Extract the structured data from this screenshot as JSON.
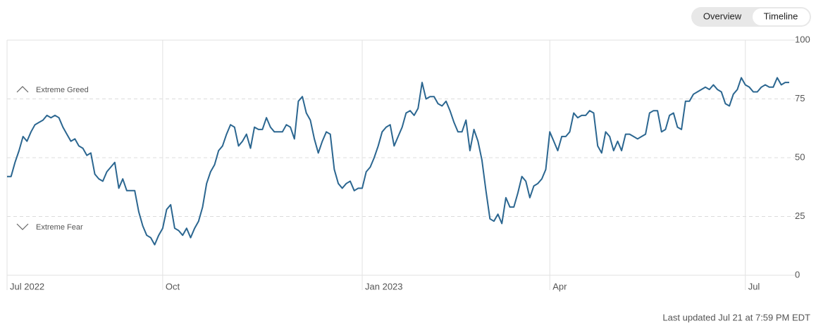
{
  "controls": {
    "buttons": [
      "Overview",
      "Timeline"
    ],
    "active": 1
  },
  "chart_data": {
    "type": "line",
    "annotations": [
      "Extreme Greed",
      "Extreme Fear"
    ],
    "footer": "Last updated Jul 21 at 7:59 PM EDT",
    "color": "#2b6690",
    "values": [
      42,
      42,
      48,
      53,
      59,
      57,
      61,
      64,
      65,
      66,
      68,
      67,
      68,
      67,
      63,
      60,
      57,
      58,
      55,
      54,
      51,
      52,
      43,
      41,
      40,
      44,
      46,
      48,
      37,
      41,
      36,
      36,
      36,
      27,
      21,
      17,
      16,
      13,
      17,
      20,
      28,
      30,
      20,
      19,
      17,
      20,
      16,
      20,
      23,
      29,
      39,
      44,
      47,
      53,
      55,
      60,
      64,
      63,
      55,
      57,
      60,
      54,
      63,
      62,
      62,
      67,
      63,
      61,
      61,
      61,
      64,
      63,
      58,
      74,
      76,
      69,
      66,
      58,
      52,
      57,
      61,
      60,
      45,
      39,
      37,
      39,
      40,
      36,
      37,
      37,
      44,
      46,
      50,
      55,
      61,
      63,
      64,
      55,
      59,
      63,
      69,
      70,
      68,
      71,
      82,
      75,
      76,
      76,
      73,
      72,
      74,
      70,
      65,
      61,
      61,
      66,
      53,
      62,
      57,
      49,
      36,
      24,
      23,
      26,
      22,
      33,
      29,
      29,
      35,
      42,
      40,
      33,
      38,
      39,
      41,
      45,
      61,
      57,
      53,
      59,
      59,
      61,
      69,
      67,
      68,
      68,
      70,
      69,
      55,
      52,
      61,
      59,
      53,
      57,
      53,
      60,
      60,
      59,
      58,
      59,
      60,
      69,
      70,
      70,
      61,
      62,
      68,
      69,
      63,
      62,
      74,
      74,
      77,
      78,
      79,
      80,
      79,
      81,
      79,
      78,
      73,
      72,
      77,
      79,
      84,
      81,
      80,
      78,
      78,
      80,
      81,
      80,
      80,
      84,
      81,
      82,
      82
    ],
    "xlim": [
      0,
      196
    ],
    "xticks": [
      {
        "value": 0,
        "label": "Jul 2022"
      },
      {
        "value": 39,
        "label": "Oct"
      },
      {
        "value": 89,
        "label": "Jan 2023"
      },
      {
        "value": 136,
        "label": "Apr"
      },
      {
        "value": 185,
        "label": "Jul"
      }
    ],
    "ylim": [
      0,
      100
    ],
    "yticks": [
      0,
      25,
      50,
      75,
      100
    ],
    "grid": true
  }
}
